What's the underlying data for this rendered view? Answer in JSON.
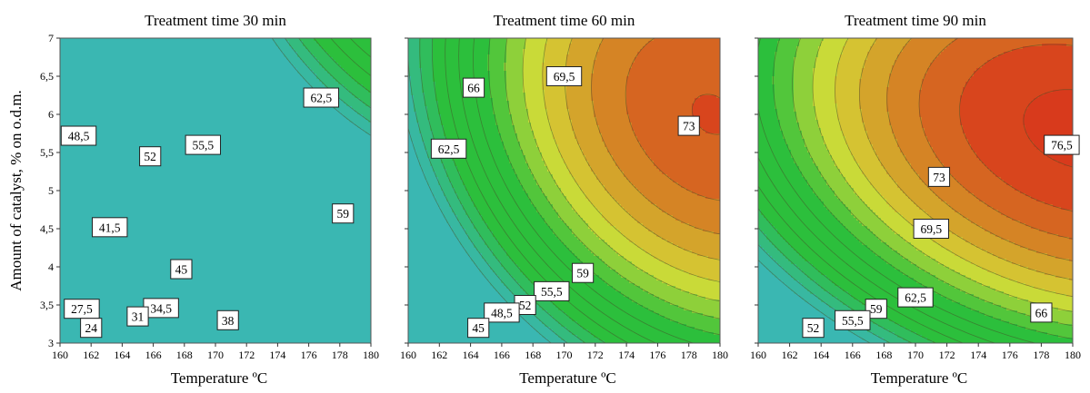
{
  "chart_data": {
    "type": "contour",
    "ylabel": "Amount of catalyst, % on o.d.m.",
    "x_ticks": [
      "160",
      "162",
      "164",
      "166",
      "168",
      "170",
      "172",
      "174",
      "176",
      "178",
      "180"
    ],
    "y_ticks": [
      "3",
      "3,5",
      "4",
      "4,5",
      "5",
      "5,5",
      "6",
      "6,5",
      "7"
    ],
    "xlim": [
      160,
      180
    ],
    "ylim": [
      3,
      7
    ],
    "panels": [
      {
        "title": "Treatment time 30 min",
        "xlabel": "Temperature ºC",
        "params": {
          "base": 57,
          "wx": 1.2,
          "wy": 3.5,
          "x0": 184,
          "y0": 8.4,
          "ax": 0.15,
          "ay": 2.0,
          "cxy": 0.47
        },
        "labels": [
          {
            "text": "62,5",
            "x": 176.8,
            "y": 6.22
          },
          {
            "text": "48,5",
            "x": 161.2,
            "y": 5.72
          },
          {
            "text": "52",
            "x": 165.8,
            "y": 5.45
          },
          {
            "text": "55,5",
            "x": 169.2,
            "y": 5.6
          },
          {
            "text": "59",
            "x": 178.2,
            "y": 4.7
          },
          {
            "text": "41,5",
            "x": 163.2,
            "y": 4.52
          },
          {
            "text": "45",
            "x": 167.8,
            "y": 3.97
          },
          {
            "text": "27,5",
            "x": 161.4,
            "y": 3.45
          },
          {
            "text": "34,5",
            "x": 166.5,
            "y": 3.46
          },
          {
            "text": "31",
            "x": 165.0,
            "y": 3.35
          },
          {
            "text": "38",
            "x": 170.8,
            "y": 3.3
          },
          {
            "text": "24",
            "x": 162.0,
            "y": 3.2
          }
        ]
      },
      {
        "title": "Treatment time 60 min",
        "xlabel": "Temperature ºC",
        "params": {
          "base": 73.2,
          "wx": 1.15,
          "wy": 3.0,
          "x0": 179.5,
          "y0": 6.0,
          "ax": 0.11,
          "ay": 2.3,
          "cxy": 0.28
        },
        "labels": [
          {
            "text": "69,5",
            "x": 170.0,
            "y": 6.5
          },
          {
            "text": "66",
            "x": 164.2,
            "y": 6.35
          },
          {
            "text": "73",
            "x": 178.0,
            "y": 5.85
          },
          {
            "text": "62,5",
            "x": 162.6,
            "y": 5.55
          },
          {
            "text": "59",
            "x": 171.2,
            "y": 3.92
          },
          {
            "text": "55,5",
            "x": 169.2,
            "y": 3.68
          },
          {
            "text": "52",
            "x": 167.5,
            "y": 3.5
          },
          {
            "text": "48,5",
            "x": 166.0,
            "y": 3.4
          },
          {
            "text": "45",
            "x": 164.5,
            "y": 3.2
          }
        ]
      },
      {
        "title": "Treatment time 90 min",
        "xlabel": "Temperature ºC",
        "params": {
          "base": 77.5,
          "wx": 0.8,
          "wy": 3.8,
          "x0": 180.5,
          "y0": 5.8,
          "ax": 0.1,
          "ay": 2.5,
          "cxy": 0.25
        },
        "labels": [
          {
            "text": "76,5",
            "x": 179.3,
            "y": 5.6
          },
          {
            "text": "73",
            "x": 171.5,
            "y": 5.18
          },
          {
            "text": "69,5",
            "x": 171.0,
            "y": 4.5
          },
          {
            "text": "62,5",
            "x": 170.0,
            "y": 3.6
          },
          {
            "text": "59",
            "x": 167.5,
            "y": 3.45
          },
          {
            "text": "55,5",
            "x": 166.0,
            "y": 3.3
          },
          {
            "text": "52",
            "x": 163.5,
            "y": 3.2
          },
          {
            "text": "66",
            "x": 178.0,
            "y": 3.4
          }
        ]
      }
    ],
    "levels": [
      24,
      27.5,
      31,
      34.5,
      38,
      41.5,
      45,
      48.5,
      52,
      55.5,
      59,
      62.5,
      66,
      69.5,
      73,
      76.5,
      80
    ],
    "colors": {
      "low": "#3ab7b2",
      "mid": "#2cbf3c",
      "yellow": "#d6dc38",
      "orange": "#d49427",
      "red": "#d83a1c"
    },
    "grid": false,
    "legend": "none"
  }
}
